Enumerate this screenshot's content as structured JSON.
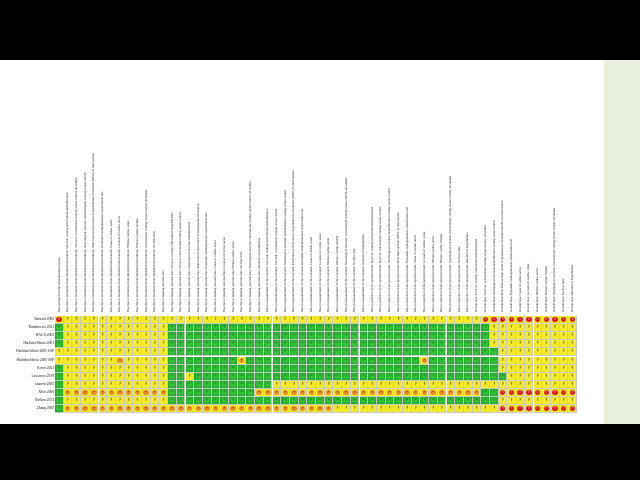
{
  "legend_symbols": {
    "g": "+",
    "y": "?",
    "o": "−",
    "r": "×"
  },
  "studies": [
    "Bernard 2002",
    "Dankiewicz 2021",
    "HACA 2002",
    "Hachimi-Idrissi 2001",
    "Hachimi-Idrissi 2005 LSP",
    "Hachimi-Idrissi 2005 SSP",
    "Kovet 2021",
    "Lascarrou 2019",
    "Laurent 2005",
    "Mori 2006",
    "Nielsen 2013",
    "Zhang 2005"
  ],
  "columns": [
    "Bias arising from the randomization process",
    "Bias due to deviations from intended intervention: Survival: cooling with/without hemofiltration",
    "Bias due to deviations from intended interventions: Survival: conventional cooling versus control, all studies",
    "Bias due to deviations from intended interventions: Neurological outcome: hemofiltration cooling versus control",
    "Bias due to deviations from intended interventions: Time interval from return of spontaneous circulation (ROSC) to intervention",
    "Bias due to deviations from intended interventions: Bystander cardiopulmonary resuscitation rate",
    "Bias due to deviations from intended interventions: Cause of cardiac arrest",
    "Bias due to deviations from intended interventions: Location of cardiac arrest",
    "Bias due to deviations from intended interventions: Witness cardiac arrest",
    "Bias due to deviations from intended interventions: Primary cardiac rhythm",
    "Bias due to deviations from intended interventions: conventional cooling versus control, all studies",
    "Bias due to deviations from intended interventions: No-flow time",
    "Bias due to missing outcome data",
    "Bias due to missing outcome data: Survival: cooling with/without hemofiltration",
    "Bias due to missing outcome data: Survival: conventional cooling versus control",
    "Bias due to missing outcome data: Neurological outcome: hemofiltration",
    "Bias due to missing outcome data: Time interval from return of spontaneous circulation",
    "Bias due to missing outcome data: Bystander cardiopulmonary resuscitation rate",
    "Bias due to missing outcome data: Cause of cardiac arrest",
    "Bias due to missing outcome data: Location of cardiac arrest",
    "Bias due to missing outcome data: Witness cardiac arrest",
    "Bias due to missing outcome data: No-flow time",
    "Bias due to missing outcome data: Neurological outcome: conventional cooling versus control, all studies",
    "Bias due to missing outcome data: Duration of hypothermia",
    "Bias in measurement of the outcome: Survival: cooling with/without hemofiltration",
    "Bias in measurement of the outcome: Survival: conventional cooling versus control",
    "Bias in measurement of the outcome: Neurological outcome: hemofiltration cooling versus control",
    "Bias in measurement of the outcome: Time interval from return of spontaneous circulation (ROSC) to intervention",
    "Bias in measurement of the outcome: Bystander cardiopulmonary resuscitation rate",
    "Bias in measurement of the outcome: Cause of cardiac arrest",
    "Bias in measurement of the outcome: Location of cardiac arrest",
    "Bias in measurement of the outcome: Witness cardiac arrest",
    "Bias in measurement of the outcome: Primary cardiac rhythm",
    "Bias in measurement of the outcome: Neurological outcome: conventional cooling versus control, all studies",
    "Bias in measurement of the outcome: No-flow time",
    "Bias in measurement of the outcome: Duration of hypothermia",
    "Bias in selection of the reported result: Survival: cooling with/without hemofiltration",
    "Bias in selection of the reported result: Survival: conventional cooling versus control",
    "Bias in selection of the reported result: Neurological outcome: hemofiltration cooling versus control",
    "Bias in selection of the reported result: Time interval from ROSC to intervention",
    "Bias in selection of the reported result: Bystander cardiopulmonary resuscitation rate",
    "Bias in selection of the reported result: Cause of cardiac arrest",
    "Bias in selection of the reported result: Location of cardiac arrest",
    "Bias in selection of the reported result: Witness cardiac arrest",
    "Bias in selection of the reported result: Primary cardiac rhythm",
    "Bias in selection of the reported result: Neurological outcome: conventional cooling versus control, all studies",
    "Bias in selection of the reported result: No-flow time",
    "Bias in selection of the reported result: Duration of hypothermia",
    "Overall bias: Survival: cooling with/without hemofiltration",
    "Overall bias: Survival: conventional cooling versus control, all studies",
    "Overall bias: Neurological outcome: hemofiltration cooling versus control",
    "Overall bias: Time interval from return of spontaneous circulation (ROSC) to intervention",
    "Overall bias: Bystander cardiopulmonary resuscitation rate",
    "Overall bias: Cause of cardiac arrest",
    "Overall bias: Location of cardiac arrest",
    "Overall bias: Witness cardiac arrest",
    "Overall bias: Primary cardiac rhythm",
    "Overall bias: Neurological outcome: conventional cooling versus control, all studies",
    "Overall bias: No-flow time",
    "Overall bias: Duration of hypothermia"
  ],
  "matrix": [
    "ryyyyyyyyyyyyyyyyyyyyyyyyyyyyyyyyyyyyyyyyyyyyyyyyrrrrrrrrrrrr",
    "gyyyyyyyyyyyygggggggggggggggggggggggggggggggggggggyyyyyyyyyyyy",
    "gyyyyyyyyyyyygggggggggggggggggggggggggggggggggggggyyyyyyyyyyyy",
    "gyyyyyyyyyyyygggggggggggggggggggggggggggggggggggggyyyyyyyyyyyy",
    "yyyyyyyyyyyyyggggggggggggggggggggggggggggggggggggggyyyyyyyyyyy",
    "yyyyyyyoyyyyyggggggggoggggggggggggggggggggoggggggggyyyyyyyyyyy",
    "gyyyyyyyyyyyyggggggggggggggggggggggggggggggggggggggyyyyyyyyyyy",
    "gyyyyyyyyyyyyggyggggggggggggggggggggggggggggggggggggyyyyyyyyyy",
    "gyyyyyyyyyyyyggggggggggggyyyyyyyyyyyyyyyyyyyyyyyyyyyyyyyyyyyyy",
    "gooooooooooooggggggggggooooooooooooooooooooooooooggrrrrrrrrrr",
    "gyyyyyyyyyyyyggggggggggggggggggggggggggggggggggggggyyyyyyyyyyy",
    "goooooooooooooooooooooooooooooooyyyyyyyyyyyyyyyyyyyrrrrrrrrrrr"
  ]
}
